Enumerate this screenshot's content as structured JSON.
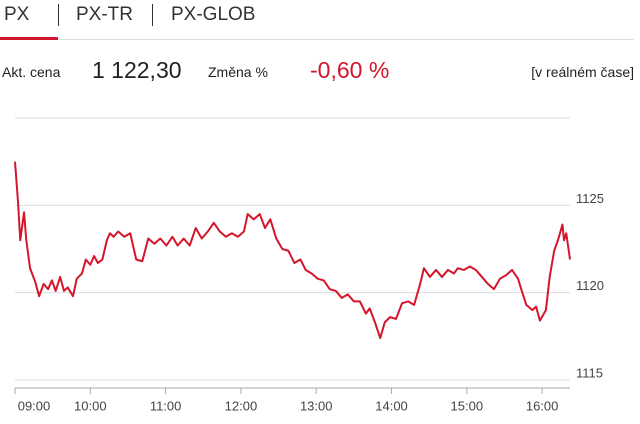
{
  "tabs": [
    "PX",
    "PX-TR",
    "PX-GLOB"
  ],
  "quote": {
    "price_label": "Akt. cena",
    "price": "1 122,30",
    "change_label": "Změna %",
    "change": "-0,60 %",
    "status": "[v reálném čase]"
  },
  "chart_data": {
    "type": "line",
    "color": "#d3162c",
    "x": [
      9.0,
      9.04,
      9.07,
      9.12,
      9.15,
      9.2,
      9.27,
      9.32,
      9.38,
      9.44,
      9.49,
      9.54,
      9.6,
      9.65,
      9.7,
      9.77,
      9.82,
      9.89,
      9.94,
      10.0,
      10.05,
      10.1,
      10.16,
      10.22,
      10.26,
      10.31,
      10.37,
      10.45,
      10.53,
      10.61,
      10.69,
      10.77,
      10.85,
      10.93,
      11.01,
      11.09,
      11.16,
      11.24,
      11.32,
      11.4,
      11.48,
      11.56,
      11.64,
      11.72,
      11.8,
      11.88,
      11.96,
      12.04,
      12.09,
      12.17,
      12.25,
      12.32,
      12.39,
      12.47,
      12.55,
      12.63,
      12.71,
      12.79,
      12.86,
      12.94,
      13.02,
      13.1,
      13.18,
      13.26,
      13.34,
      13.42,
      13.5,
      13.58,
      13.66,
      13.71,
      13.78,
      13.85,
      13.91,
      13.98,
      14.06,
      14.14,
      14.22,
      14.3,
      14.38,
      14.43,
      14.51,
      14.59,
      14.67,
      14.75,
      14.83,
      14.88,
      14.96,
      15.04,
      15.12,
      15.2,
      15.28,
      15.36,
      15.44,
      15.52,
      15.6,
      15.68,
      15.73,
      15.79,
      15.87,
      15.92,
      15.97,
      16.05,
      16.1,
      16.16,
      16.21,
      16.27,
      16.29,
      16.32,
      16.37
    ],
    "values": [
      1127.5,
      1125.2,
      1123.0,
      1124.6,
      1123.0,
      1121.4,
      1120.6,
      1119.8,
      1120.5,
      1120.2,
      1120.7,
      1120.1,
      1120.9,
      1120.1,
      1120.3,
      1119.8,
      1120.8,
      1121.1,
      1121.9,
      1121.6,
      1122.1,
      1121.7,
      1121.9,
      1123.0,
      1123.4,
      1123.2,
      1123.5,
      1123.2,
      1123.4,
      1121.9,
      1121.8,
      1123.1,
      1122.8,
      1123.1,
      1122.7,
      1123.2,
      1122.7,
      1123.1,
      1122.7,
      1123.7,
      1123.1,
      1123.5,
      1124.0,
      1123.5,
      1123.2,
      1123.4,
      1123.2,
      1123.5,
      1124.5,
      1124.2,
      1124.5,
      1123.7,
      1124.2,
      1123.1,
      1122.5,
      1122.4,
      1121.7,
      1121.9,
      1121.3,
      1121.1,
      1120.8,
      1120.7,
      1120.2,
      1120.1,
      1119.7,
      1119.9,
      1119.5,
      1119.5,
      1118.8,
      1119.1,
      1118.3,
      1117.4,
      1118.3,
      1118.6,
      1118.5,
      1119.4,
      1119.5,
      1119.3,
      1120.5,
      1121.4,
      1120.9,
      1121.3,
      1120.9,
      1121.3,
      1121.1,
      1121.4,
      1121.3,
      1121.5,
      1121.3,
      1120.9,
      1120.5,
      1120.2,
      1120.8,
      1121.0,
      1121.3,
      1120.8,
      1120.1,
      1119.3,
      1119.0,
      1119.2,
      1118.4,
      1119.0,
      1120.9,
      1122.4,
      1123.0,
      1123.9,
      1123.0,
      1123.4,
      1121.9
    ],
    "xlim": [
      9,
      16.37
    ],
    "xticks": [
      {
        "value": 9,
        "label": "09:00"
      },
      {
        "value": 10,
        "label": "10:00"
      },
      {
        "value": 11,
        "label": "11:00"
      },
      {
        "value": 12,
        "label": "12:00"
      },
      {
        "value": 13,
        "label": "13:00"
      },
      {
        "value": 14,
        "label": "14:00"
      },
      {
        "value": 15,
        "label": "15:00"
      },
      {
        "value": 16,
        "label": "16:00"
      }
    ],
    "ylim": [
      1115,
      1130
    ],
    "yticks": [
      1115,
      1120,
      1125
    ],
    "grid": true
  }
}
